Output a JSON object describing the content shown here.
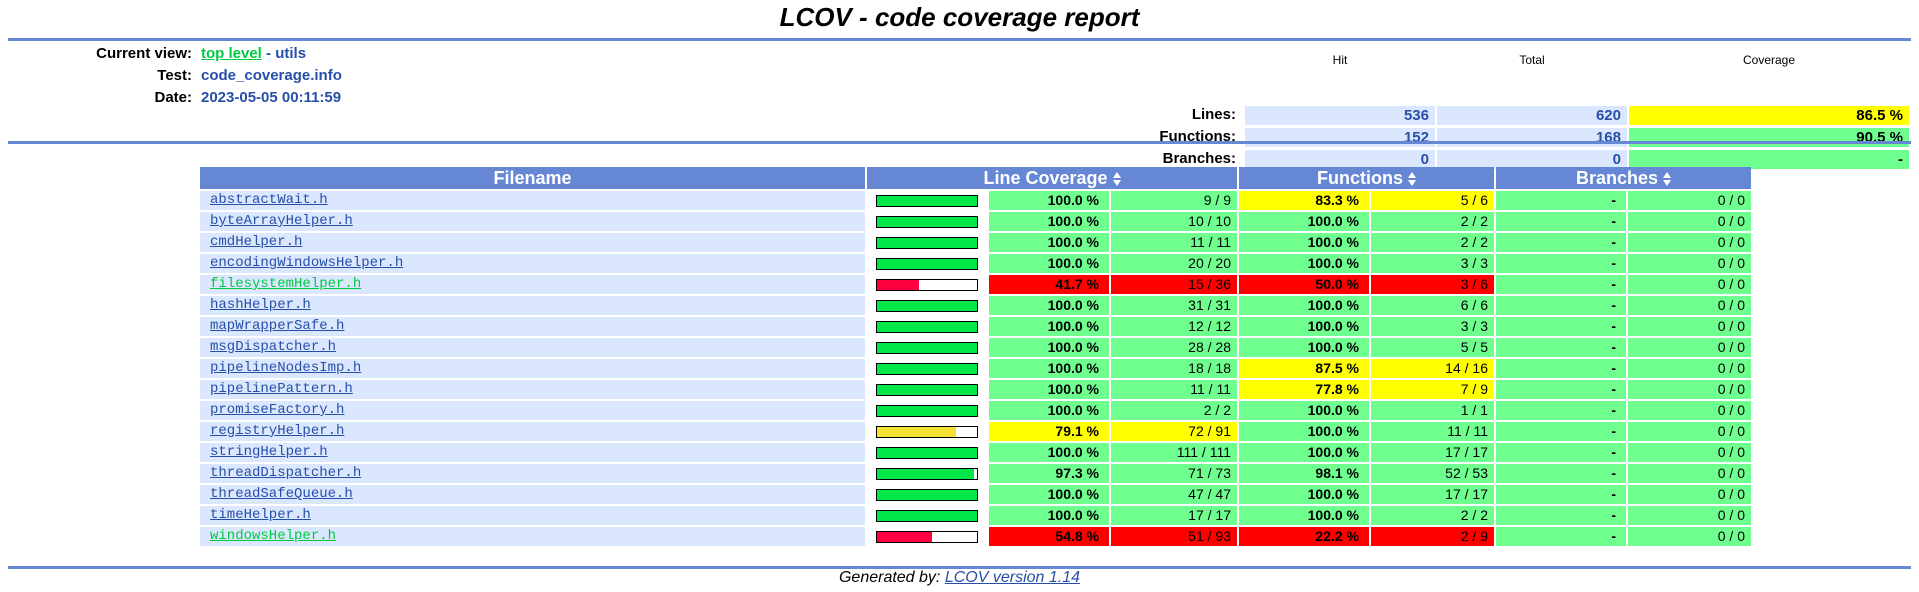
{
  "title": "LCOV - code coverage report",
  "header": {
    "current_view_label": "Current view:",
    "current_view_link": "top level",
    "current_view_sep": " - ",
    "current_view_dir": "utils",
    "test_label": "Test:",
    "test_value": "code_coverage.info",
    "date_label": "Date:",
    "date_value": "2023-05-05 00:11:59"
  },
  "summary": {
    "col_hit": "Hit",
    "col_total": "Total",
    "col_coverage": "Coverage",
    "rows": [
      {
        "label": "Lines:",
        "hit": "536",
        "total": "620",
        "coverage": "86.5 %",
        "level": "med"
      },
      {
        "label": "Functions:",
        "hit": "152",
        "total": "168",
        "coverage": "90.5 %",
        "level": "hi"
      },
      {
        "label": "Branches:",
        "hit": "0",
        "total": "0",
        "coverage": "-",
        "level": "hi"
      }
    ]
  },
  "table": {
    "headers": {
      "filename": "Filename",
      "line": "Line Coverage",
      "functions": "Functions",
      "branches": "Branches"
    },
    "rows": [
      {
        "file": "abstractWait.h",
        "line_ratio": 1.0,
        "line_pct": "100.0 %",
        "line_count": "9 / 9",
        "line_level": "hi",
        "fn_pct": "83.3 %",
        "fn_count": "5 / 6",
        "fn_level": "med",
        "br_pct": "-",
        "br_count": "0 / 0"
      },
      {
        "file": "byteArrayHelper.h",
        "line_ratio": 1.0,
        "line_pct": "100.0 %",
        "line_count": "10 / 10",
        "line_level": "hi",
        "fn_pct": "100.0 %",
        "fn_count": "2 / 2",
        "fn_level": "hi",
        "br_pct": "-",
        "br_count": "0 / 0"
      },
      {
        "file": "cmdHelper.h",
        "line_ratio": 1.0,
        "line_pct": "100.0 %",
        "line_count": "11 / 11",
        "line_level": "hi",
        "fn_pct": "100.0 %",
        "fn_count": "2 / 2",
        "fn_level": "hi",
        "br_pct": "-",
        "br_count": "0 / 0"
      },
      {
        "file": "encodingWindowsHelper.h",
        "line_ratio": 1.0,
        "line_pct": "100.0 %",
        "line_count": "20 / 20",
        "line_level": "hi",
        "fn_pct": "100.0 %",
        "fn_count": "3 / 3",
        "fn_level": "hi",
        "br_pct": "-",
        "br_count": "0 / 0"
      },
      {
        "file": "filesystemHelper.h",
        "line_ratio": 0.417,
        "line_pct": "41.7 %",
        "line_count": "15 / 36",
        "line_level": "lo",
        "fn_pct": "50.0 %",
        "fn_count": "3 / 6",
        "fn_level": "lo",
        "br_pct": "-",
        "br_count": "0 / 0"
      },
      {
        "file": "hashHelper.h",
        "line_ratio": 1.0,
        "line_pct": "100.0 %",
        "line_count": "31 / 31",
        "line_level": "hi",
        "fn_pct": "100.0 %",
        "fn_count": "6 / 6",
        "fn_level": "hi",
        "br_pct": "-",
        "br_count": "0 / 0"
      },
      {
        "file": "mapWrapperSafe.h",
        "line_ratio": 1.0,
        "line_pct": "100.0 %",
        "line_count": "12 / 12",
        "line_level": "hi",
        "fn_pct": "100.0 %",
        "fn_count": "3 / 3",
        "fn_level": "hi",
        "br_pct": "-",
        "br_count": "0 / 0"
      },
      {
        "file": "msgDispatcher.h",
        "line_ratio": 1.0,
        "line_pct": "100.0 %",
        "line_count": "28 / 28",
        "line_level": "hi",
        "fn_pct": "100.0 %",
        "fn_count": "5 / 5",
        "fn_level": "hi",
        "br_pct": "-",
        "br_count": "0 / 0"
      },
      {
        "file": "pipelineNodesImp.h",
        "line_ratio": 1.0,
        "line_pct": "100.0 %",
        "line_count": "18 / 18",
        "line_level": "hi",
        "fn_pct": "87.5 %",
        "fn_count": "14 / 16",
        "fn_level": "med",
        "br_pct": "-",
        "br_count": "0 / 0"
      },
      {
        "file": "pipelinePattern.h",
        "line_ratio": 1.0,
        "line_pct": "100.0 %",
        "line_count": "11 / 11",
        "line_level": "hi",
        "fn_pct": "77.8 %",
        "fn_count": "7 / 9",
        "fn_level": "med",
        "br_pct": "-",
        "br_count": "0 / 0"
      },
      {
        "file": "promiseFactory.h",
        "line_ratio": 1.0,
        "line_pct": "100.0 %",
        "line_count": "2 / 2",
        "line_level": "hi",
        "fn_pct": "100.0 %",
        "fn_count": "1 / 1",
        "fn_level": "hi",
        "br_pct": "-",
        "br_count": "0 / 0"
      },
      {
        "file": "registryHelper.h",
        "line_ratio": 0.791,
        "line_pct": "79.1 %",
        "line_count": "72 / 91",
        "line_level": "med",
        "fn_pct": "100.0 %",
        "fn_count": "11 / 11",
        "fn_level": "hi",
        "br_pct": "-",
        "br_count": "0 / 0"
      },
      {
        "file": "stringHelper.h",
        "line_ratio": 1.0,
        "line_pct": "100.0 %",
        "line_count": "111 / 111",
        "line_level": "hi",
        "fn_pct": "100.0 %",
        "fn_count": "17 / 17",
        "fn_level": "hi",
        "br_pct": "-",
        "br_count": "0 / 0"
      },
      {
        "file": "threadDispatcher.h",
        "line_ratio": 0.973,
        "line_pct": "97.3 %",
        "line_count": "71 / 73",
        "line_level": "hi",
        "fn_pct": "98.1 %",
        "fn_count": "52 / 53",
        "fn_level": "hi",
        "br_pct": "-",
        "br_count": "0 / 0"
      },
      {
        "file": "threadSafeQueue.h",
        "line_ratio": 1.0,
        "line_pct": "100.0 %",
        "line_count": "47 / 47",
        "line_level": "hi",
        "fn_pct": "100.0 %",
        "fn_count": "17 / 17",
        "fn_level": "hi",
        "br_pct": "-",
        "br_count": "0 / 0"
      },
      {
        "file": "timeHelper.h",
        "line_ratio": 1.0,
        "line_pct": "100.0 %",
        "line_count": "17 / 17",
        "line_level": "hi",
        "fn_pct": "100.0 %",
        "fn_count": "2 / 2",
        "fn_level": "hi",
        "br_pct": "-",
        "br_count": "0 / 0"
      },
      {
        "file": "windowsHelper.h",
        "line_ratio": 0.548,
        "line_pct": "54.8 %",
        "line_count": "51 / 93",
        "line_level": "lo",
        "fn_pct": "22.2 %",
        "fn_count": "2 / 9",
        "fn_level": "lo",
        "br_pct": "-",
        "br_count": "0 / 0"
      }
    ]
  },
  "footer": {
    "generated_by": "Generated by:",
    "lcov_link": "LCOV version 1.14"
  },
  "colors": {
    "hi_bar": "#00e847",
    "med_bar": "#f6e234",
    "lo_bar": "#ff0040",
    "hi_cell": "#6fff8f",
    "med_cell": "#ffff00",
    "lo_cell": "#ff0000"
  }
}
